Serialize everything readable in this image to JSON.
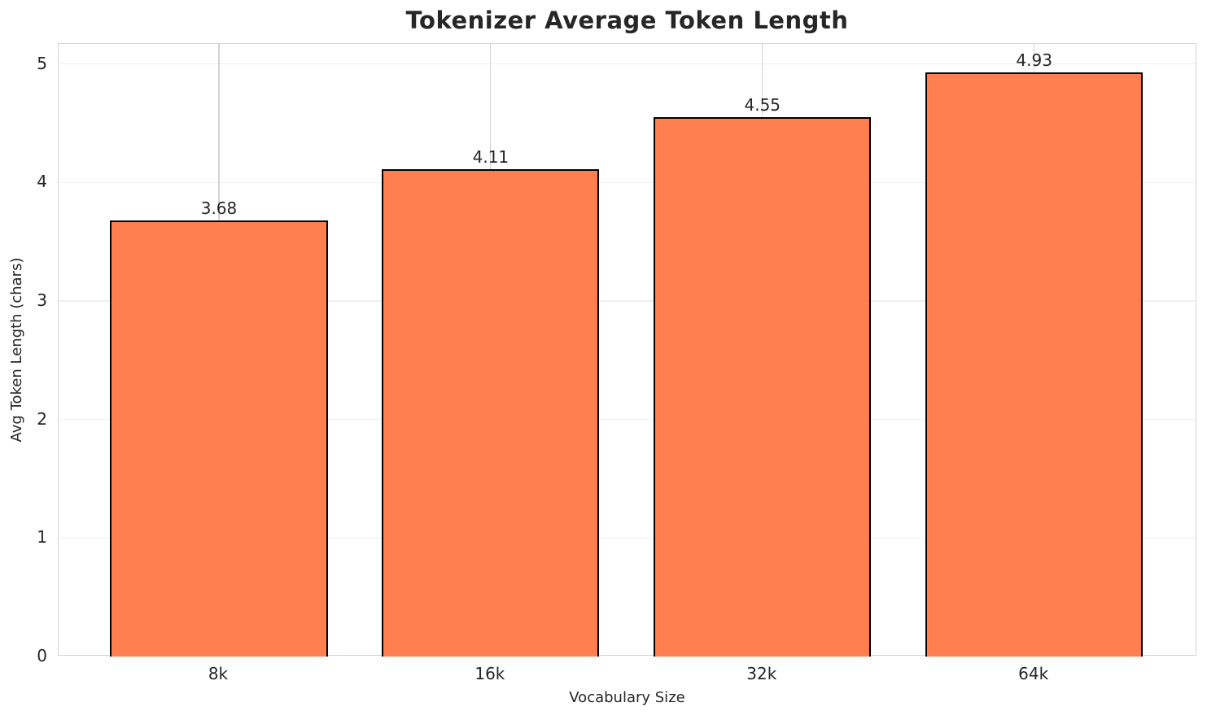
{
  "chart_data": {
    "type": "bar",
    "title": "Tokenizer Average Token Length",
    "xlabel": "Vocabulary Size",
    "ylabel": "Avg Token Length (chars)",
    "categories": [
      "8k",
      "16k",
      "32k",
      "64k"
    ],
    "values": [
      3.68,
      4.11,
      4.55,
      4.93
    ],
    "value_labels": [
      "3.68",
      "4.11",
      "4.55",
      "4.93"
    ],
    "yticks": [
      "0",
      "1",
      "2",
      "3",
      "4",
      "5"
    ],
    "ytick_values": [
      0,
      1,
      2,
      3,
      4,
      5
    ],
    "ylim": [
      0,
      5.17
    ],
    "grid": true,
    "legend": false,
    "colors": {
      "bar_fill": "#FF7F50",
      "bar_edge": "#000000",
      "text": "#262626",
      "h_grid": "#f0f0f0",
      "v_grid": "#d2d2d2",
      "plot_border": "#d5d5d5",
      "background": "#ffffff"
    }
  }
}
